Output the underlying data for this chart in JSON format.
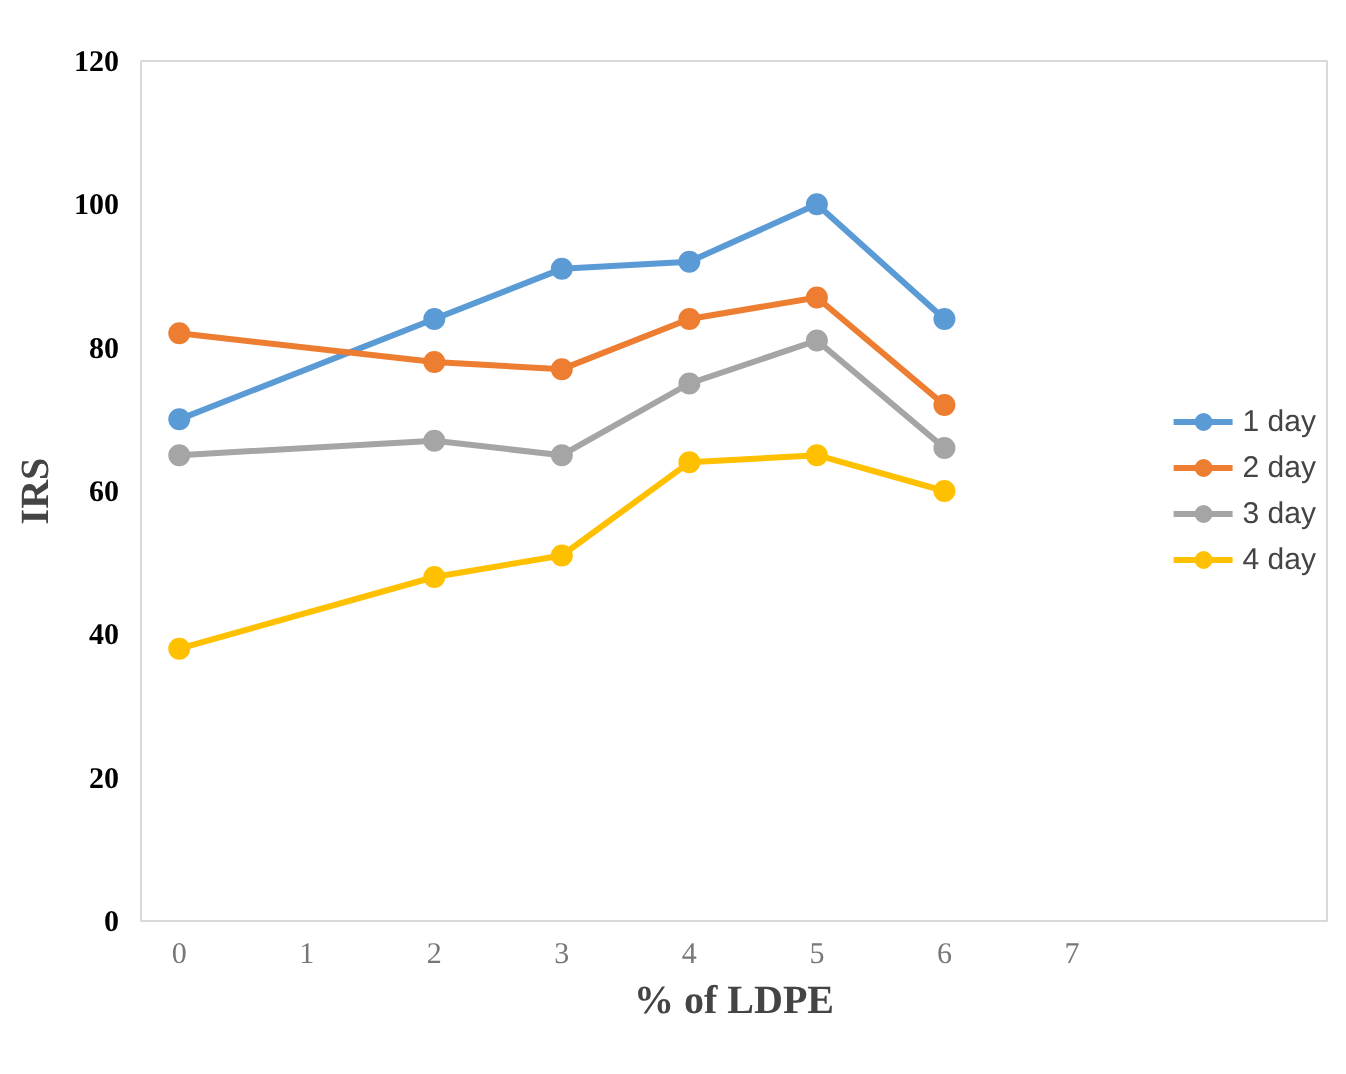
{
  "chart_data": {
    "type": "line",
    "xlabel": "% of LDPE",
    "ylabel": "IRS",
    "x": [
      0,
      2,
      3,
      4,
      5,
      6
    ],
    "series": [
      {
        "name": "1 day",
        "color": "#5b9bd5",
        "values": [
          70,
          84,
          91,
          92,
          100,
          84
        ]
      },
      {
        "name": "2 day",
        "color": "#ed7d31",
        "values": [
          82,
          78,
          77,
          84,
          87,
          72
        ]
      },
      {
        "name": "3 day",
        "color": "#a5a5a5",
        "values": [
          65,
          67,
          65,
          75,
          81,
          66
        ]
      },
      {
        "name": "4 day",
        "color": "#ffc000",
        "values": [
          38,
          48,
          51,
          64,
          65,
          60
        ]
      }
    ],
    "xlim": [
      -0.3,
      9
    ],
    "ylim": [
      0,
      120
    ],
    "xticks": [
      0,
      1,
      2,
      3,
      4,
      5,
      6,
      7
    ],
    "yticks": [
      0,
      20,
      40,
      60,
      80,
      100,
      120
    ],
    "grid": false,
    "legend": "right",
    "marker": "circle",
    "line_style": "solid"
  }
}
